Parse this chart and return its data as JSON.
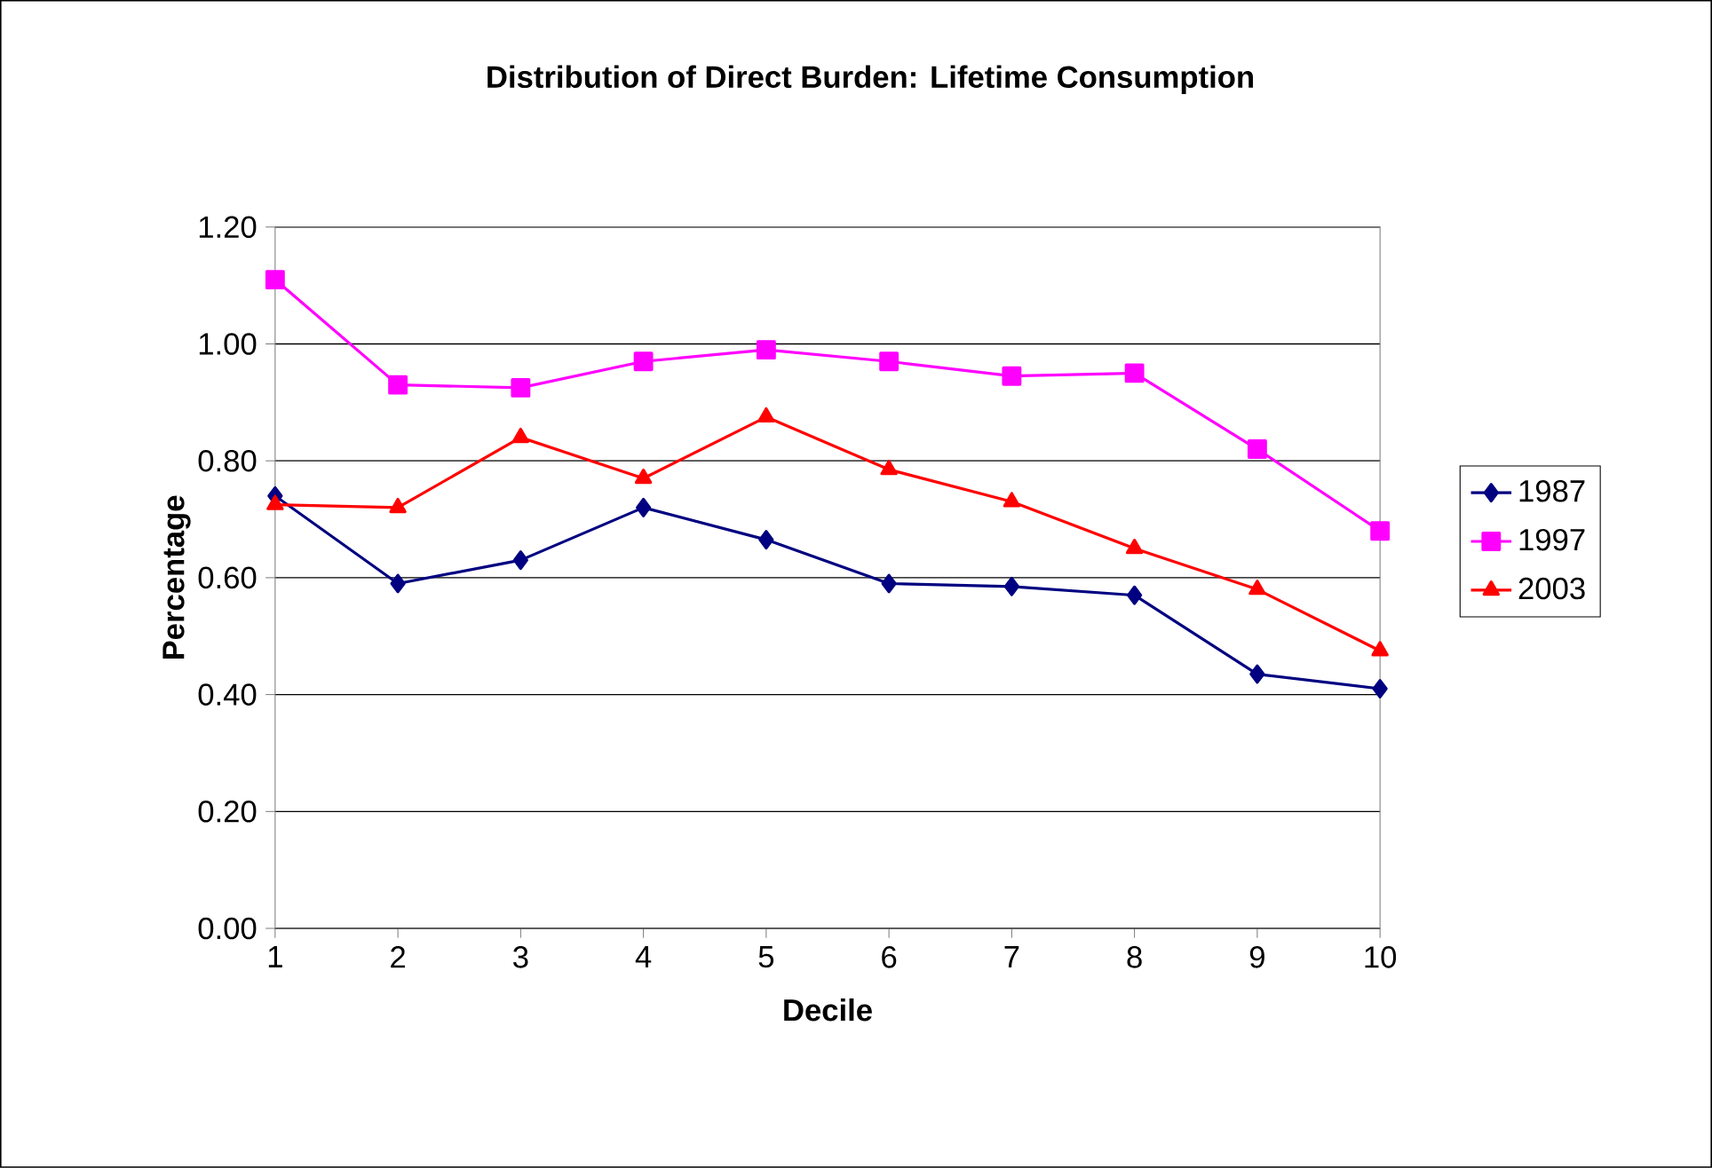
{
  "chart_data": {
    "type": "line",
    "title": "Distribution of Direct Burden: Lifetime Consumption",
    "xlabel": "Decile",
    "ylabel": "Percentage",
    "categories": [
      "1",
      "2",
      "3",
      "4",
      "5",
      "6",
      "7",
      "8",
      "9",
      "10"
    ],
    "series": [
      {
        "name": "1987",
        "color": "#000080",
        "marker": "diamond",
        "values": [
          0.74,
          0.59,
          0.63,
          0.72,
          0.665,
          0.59,
          0.585,
          0.57,
          0.435,
          0.41
        ]
      },
      {
        "name": "1997",
        "color": "#ff00ff",
        "marker": "square",
        "values": [
          1.11,
          0.93,
          0.925,
          0.97,
          0.99,
          0.97,
          0.945,
          0.95,
          0.82,
          0.68
        ]
      },
      {
        "name": "2003",
        "color": "#ff0000",
        "marker": "triangle",
        "values": [
          0.725,
          0.72,
          0.84,
          0.77,
          0.875,
          0.785,
          0.73,
          0.65,
          0.58,
          0.475
        ]
      }
    ],
    "ylim": [
      0,
      1.2
    ],
    "yticks": [
      {
        "value": 0,
        "label": "0.00"
      },
      {
        "value": 0.2,
        "label": "0.20"
      },
      {
        "value": 0.4,
        "label": "0.40"
      },
      {
        "value": 0.6,
        "label": "0.60"
      },
      {
        "value": 0.8,
        "label": "0.80"
      },
      {
        "value": 1.0,
        "label": "1.00"
      },
      {
        "value": 1.2,
        "label": "1.20"
      }
    ],
    "grid": "y",
    "legend": "right",
    "line_style": "solid"
  }
}
